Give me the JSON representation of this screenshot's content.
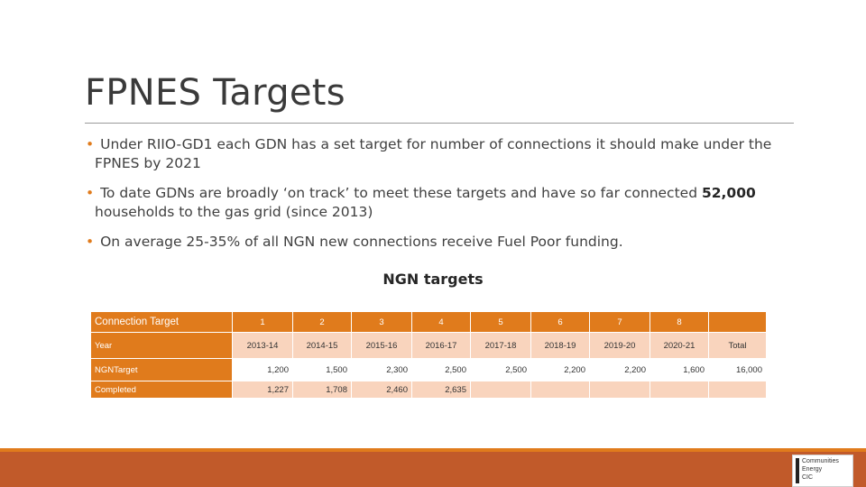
{
  "slide": {
    "title": "FPNES Targets",
    "bullets": [
      {
        "line1": "Under RIIO-GD1 each GDN has a set target for number of connections it should make under  the",
        "line2": "FPNES by 2021"
      },
      {
        "line1_pre": "To date GDNs are broadly ‘on track’ to meet these targets and have so far connected ",
        "line1_bold": "52,000",
        "line2": "households to the gas grid (since 2013)"
      },
      {
        "line1": "On average 25-35% of all NGN new connections receive Fuel Poor funding."
      }
    ],
    "table_title": "NGN targets"
  },
  "table": {
    "rows": [
      [
        "Connection Target",
        "1",
        "2",
        "3",
        "4",
        "5",
        "6",
        "7",
        "8",
        ""
      ],
      [
        "Year",
        "2013-14",
        "2014-15",
        "2015-16",
        "2016-17",
        "2017-18",
        "2018-19",
        "2019-20",
        "2020-21",
        "Total"
      ],
      [
        "NGNTarget",
        "1,200",
        "1,500",
        "2,300",
        "2,500",
        "2,500",
        "2,200",
        "2,200",
        "1,600",
        "16,000"
      ],
      [
        "Completed",
        "1,227",
        "1,708",
        "2,460",
        "2,635",
        "",
        "",
        "",
        "",
        ""
      ]
    ]
  },
  "logo": {
    "line1": "Communities",
    "line2": "Energy",
    "line3": "CIC"
  },
  "colors": {
    "accent": "#e07b1c",
    "light_row": "#f9d4bd",
    "footer": "#c15a2a"
  }
}
